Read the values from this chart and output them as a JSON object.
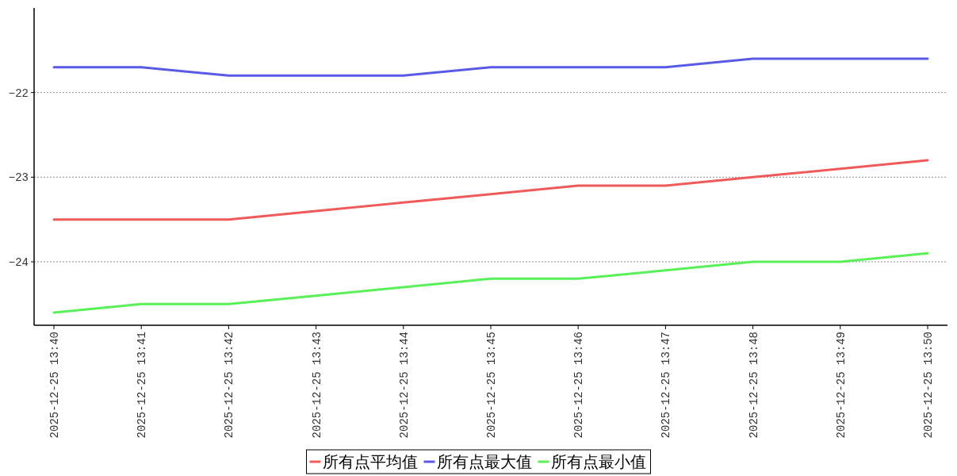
{
  "chart_data": {
    "type": "line",
    "categories": [
      "2025-12-25 13:40",
      "2025-12-25 13:41",
      "2025-12-25 13:42",
      "2025-12-25 13:43",
      "2025-12-25 13:44",
      "2025-12-25 13:45",
      "2025-12-25 13:46",
      "2025-12-25 13:47",
      "2025-12-25 13:48",
      "2025-12-25 13:49",
      "2025-12-25 13:50"
    ],
    "series": [
      {
        "name": "所有点平均值",
        "color": "#f05a5a",
        "values": [
          -23.5,
          -23.5,
          -23.5,
          -23.4,
          -23.3,
          -23.2,
          -23.1,
          -23.1,
          -23.0,
          -22.9,
          -22.8
        ]
      },
      {
        "name": "所有点最大值",
        "color": "#5a5ae6",
        "values": [
          -21.7,
          -21.7,
          -21.8,
          -21.8,
          -21.8,
          -21.7,
          -21.7,
          -21.7,
          -21.6,
          -21.6,
          -21.6
        ]
      },
      {
        "name": "所有点最小值",
        "color": "#5af05a",
        "values": [
          -24.6,
          -24.5,
          -24.5,
          -24.4,
          -24.3,
          -24.2,
          -24.2,
          -24.1,
          -24.0,
          -24.0,
          -23.9
        ]
      }
    ],
    "ylim": [
      -24.75,
      -21
    ],
    "yticks": [
      {
        "value": -24,
        "label": "−24"
      },
      {
        "value": -23,
        "label": "−23"
      },
      {
        "value": -22,
        "label": "−22"
      }
    ],
    "grid": "y",
    "legend": "bottom",
    "marker": "none",
    "line_style": "solid"
  }
}
